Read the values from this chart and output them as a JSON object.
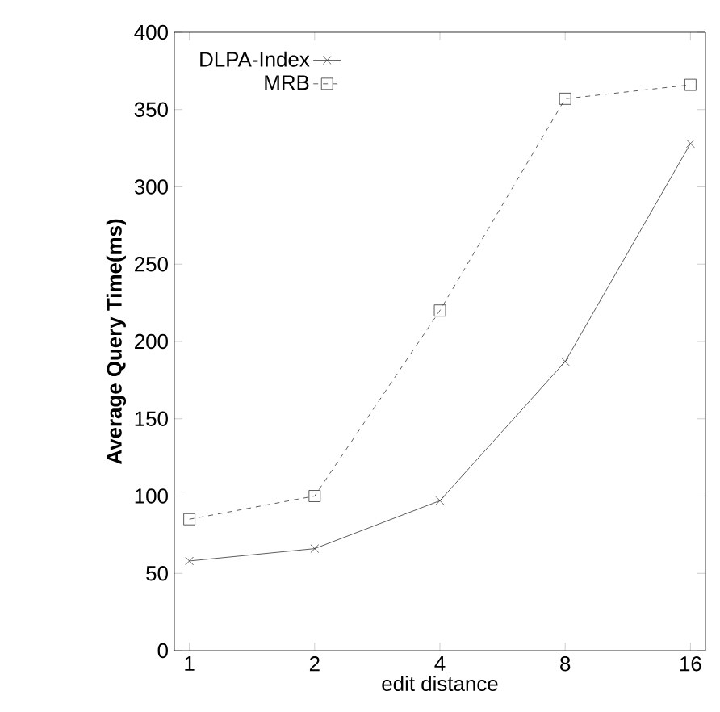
{
  "chart_data": {
    "type": "line",
    "xlabel": "edit distance",
    "ylabel": "Average Query Time(ms)",
    "categories": [
      "1",
      "2",
      "4",
      "8",
      "16"
    ],
    "ylim": [
      0,
      400
    ],
    "yticks": [
      0,
      50,
      100,
      150,
      200,
      250,
      300,
      350,
      400
    ],
    "legend": "top left",
    "grid": false,
    "series": [
      {
        "name": "DLPA-Index",
        "color": "#333333",
        "marker": "cross",
        "line_style": "solid",
        "values": [
          58,
          66,
          97,
          187,
          328
        ]
      },
      {
        "name": "MRB",
        "color": "#333333",
        "marker": "square",
        "line_style": "dashed",
        "values": [
          85,
          100,
          220,
          357,
          366
        ]
      }
    ]
  }
}
